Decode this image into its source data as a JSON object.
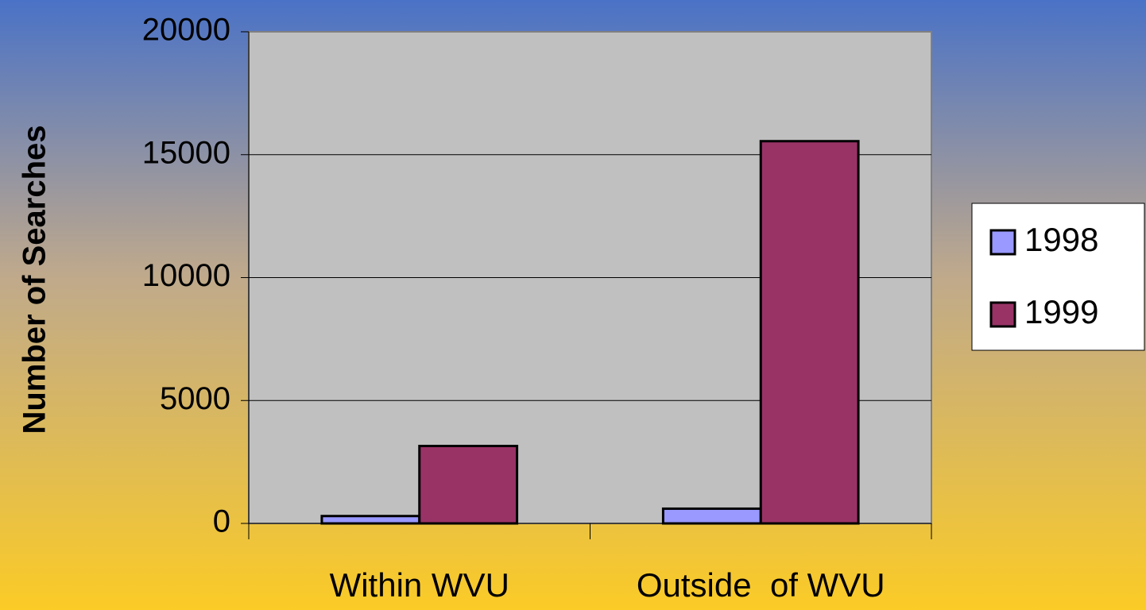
{
  "chart_data": {
    "type": "bar",
    "y_label": "Number of Searches",
    "categories": [
      "Within WVU",
      "Outside  of WVU"
    ],
    "series": [
      {
        "name": "1998",
        "color": "#9999ff",
        "values": [
          300,
          600
        ]
      },
      {
        "name": "1999",
        "color": "#993366",
        "values": [
          3150,
          15550
        ]
      }
    ],
    "ylim": [
      0,
      20000
    ],
    "yticks": [
      0,
      5000,
      10000,
      15000,
      20000
    ],
    "grid": true,
    "legend": "right"
  }
}
